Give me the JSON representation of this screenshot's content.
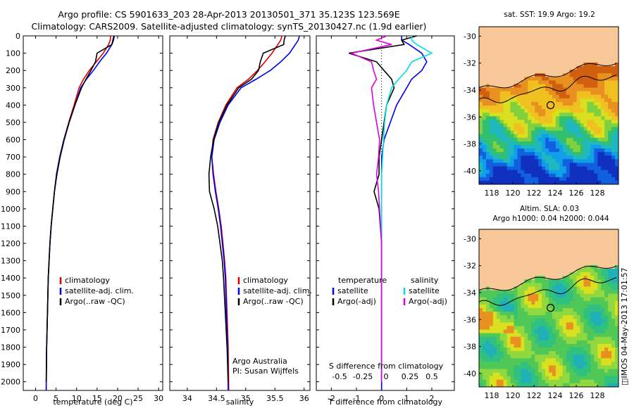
{
  "title_line1": "Argo profile: CS 5901633_203 28-Apr-2013 20130501_371 35.123S 123.569E",
  "title_line2": "Climatology: CARS2009. Satellite-adjusted climatology: synTS_20130427.nc (1.9d earlier)",
  "stamp": "IMOS 04-May-2013 17:01:57",
  "colors": {
    "clim": "#dd0000",
    "sat": "#0000ee",
    "argo": "#000000",
    "cyan": "#00dddd",
    "magenta": "#dd00dd",
    "land": "#f8c898"
  },
  "depth_ticks": [
    "0",
    "100",
    "200",
    "300",
    "400",
    "500",
    "600",
    "700",
    "800",
    "900",
    "1000",
    "1100",
    "1200",
    "1300",
    "1400",
    "1500",
    "1600",
    "1700",
    "1800",
    "1900",
    "2000"
  ],
  "temperature_panel": {
    "xlabel": "temperature (deg C)",
    "xticks": [
      "0",
      "5",
      "10",
      "15",
      "20",
      "25",
      "30"
    ],
    "legend": [
      "climatology",
      "satellite-adj. clim.",
      "Argo(..raw -QC)"
    ]
  },
  "salinity_panel": {
    "xlabel": "salinity",
    "xticks": [
      "34",
      "34.5",
      "35",
      "35.5",
      "36"
    ],
    "legend": [
      "climatology",
      "satellite-adj. clim.",
      "Argo(..raw -QC)"
    ],
    "note1": "Argo Australia",
    "note2": "PI: Susan Wijffels"
  },
  "difference_panel": {
    "xlabel": "T difference from climatology",
    "xticks": [
      "-2",
      "-1",
      "0",
      "1",
      "2"
    ],
    "top_label": "S difference from climatology",
    "top_ticks": [
      "-0.5",
      "-0.25",
      "0",
      "0.25",
      "0.5"
    ],
    "legend_temp_title": "temperature",
    "legend_sal_title": "salinity",
    "legend_temp": [
      "satellite",
      "Argo(-adj)"
    ],
    "legend_sal": [
      "satellite",
      "Argo(-adj)"
    ]
  },
  "map_top": {
    "title": "sat. SST: 19.9 Argo: 19.2",
    "yticks": [
      "-30",
      "-32",
      "-34",
      "-36",
      "-38",
      "-40"
    ],
    "xticks": [
      "118",
      "120",
      "122",
      "124",
      "126",
      "128"
    ]
  },
  "map_bottom": {
    "title1": "Altim. SLA: 0.03",
    "title2": "Argo h1000: 0.04 h2000: 0.044",
    "yticks": [
      "-30",
      "-32",
      "-34",
      "-36",
      "-38",
      "-40"
    ],
    "xticks": [
      "118",
      "120",
      "122",
      "124",
      "126",
      "128"
    ]
  },
  "chart_data": [
    {
      "type": "line",
      "title": "",
      "xlabel": "temperature (deg C)",
      "ylabel": "",
      "xlim": [
        -3,
        31
      ],
      "ylim": [
        2050,
        0
      ],
      "series": [
        {
          "name": "climatology",
          "color": "#dd0000",
          "x": [
            18.3,
            18.2,
            17.8,
            16.5,
            14.8,
            13.1,
            11.7,
            10.6,
            9.4,
            8.1,
            6.9,
            5.9,
            5.1,
            4.6,
            4.2,
            3.8,
            3.5,
            3.3,
            3.1,
            2.9,
            2.7,
            2.6
          ],
          "y": [
            0,
            25,
            50,
            100,
            150,
            200,
            250,
            300,
            400,
            500,
            600,
            700,
            800,
            900,
            1000,
            1100,
            1200,
            1300,
            1400,
            1600,
            1800,
            2050
          ]
        },
        {
          "name": "satellite-adj. clim.",
          "color": "#0000ee",
          "x": [
            19.2,
            19.0,
            18.6,
            17.3,
            15.6,
            14.1,
            12.4,
            11.0,
            9.6,
            8.2,
            6.9,
            5.9,
            5.1,
            4.6,
            4.2,
            3.8,
            3.5,
            3.3,
            3.1,
            2.9,
            2.7,
            2.6
          ],
          "y": [
            0,
            25,
            50,
            100,
            150,
            200,
            250,
            300,
            400,
            500,
            600,
            700,
            800,
            900,
            1000,
            1100,
            1200,
            1300,
            1400,
            1600,
            1800,
            2050
          ]
        },
        {
          "name": "Argo(..raw -QC)",
          "color": "#000000",
          "x": [
            19.1,
            18.9,
            18.6,
            15.0,
            14.6,
            13.5,
            12.3,
            11.2,
            9.6,
            8.2,
            7.0,
            6.0,
            5.2,
            4.6,
            4.2,
            3.8,
            3.5,
            3.3,
            3.1,
            2.9,
            2.7,
            2.6
          ],
          "y": [
            0,
            20,
            50,
            100,
            150,
            200,
            250,
            300,
            400,
            500,
            600,
            700,
            800,
            900,
            1000,
            1100,
            1200,
            1300,
            1400,
            1600,
            1800,
            2000
          ]
        }
      ]
    },
    {
      "type": "line",
      "title": "",
      "xlabel": "salinity",
      "ylabel": "",
      "xlim": [
        33.7,
        36.1
      ],
      "ylim": [
        2050,
        0
      ],
      "series": [
        {
          "name": "climatology",
          "color": "#dd0000",
          "x": [
            35.62,
            35.6,
            35.55,
            35.45,
            35.33,
            35.2,
            35.05,
            34.85,
            34.66,
            34.53,
            34.44,
            34.42,
            34.45,
            34.49,
            34.54,
            34.58,
            34.61,
            34.64,
            34.66,
            34.68,
            34.7,
            34.71
          ],
          "y": [
            0,
            25,
            50,
            100,
            150,
            200,
            250,
            300,
            400,
            500,
            600,
            700,
            800,
            900,
            1000,
            1100,
            1200,
            1300,
            1400,
            1600,
            1800,
            2050
          ]
        },
        {
          "name": "satellite-adj. clim.",
          "color": "#0000ee",
          "x": [
            35.92,
            35.9,
            35.85,
            35.75,
            35.6,
            35.42,
            35.18,
            34.92,
            34.7,
            34.56,
            34.46,
            34.42,
            34.44,
            34.48,
            34.53,
            34.57,
            34.6,
            34.63,
            34.65,
            34.67,
            34.69,
            34.7
          ],
          "y": [
            0,
            25,
            50,
            100,
            150,
            200,
            250,
            300,
            400,
            500,
            600,
            700,
            800,
            900,
            1000,
            1100,
            1200,
            1300,
            1400,
            1600,
            1800,
            2050
          ]
        },
        {
          "name": "Argo(..raw -QC)",
          "color": "#000000",
          "x": [
            35.68,
            35.66,
            35.65,
            35.3,
            35.25,
            35.22,
            35.1,
            34.88,
            34.68,
            34.54,
            34.45,
            34.4,
            34.37,
            34.38,
            34.46,
            34.52,
            34.56,
            34.6,
            34.62,
            34.65,
            34.68,
            34.7
          ],
          "y": [
            0,
            20,
            50,
            100,
            150,
            200,
            250,
            300,
            400,
            500,
            600,
            700,
            800,
            900,
            1000,
            1100,
            1200,
            1300,
            1400,
            1600,
            1800,
            2000
          ]
        }
      ]
    },
    {
      "type": "line",
      "title": "",
      "xlabel": "T difference from climatology",
      "ylabel": "",
      "xlim": [
        -2.6,
        2.9
      ],
      "ylim": [
        2050,
        0
      ],
      "series": [
        {
          "name": "temperature satellite",
          "color": "#0000ee",
          "x": [
            0.8,
            0.8,
            1.1,
            1.6,
            1.8,
            1.6,
            1.2,
            1.0,
            0.6,
            0.35,
            0.1,
            0.0,
            0.0,
            0.0,
            0.0,
            0.0,
            0.0,
            0.0,
            0.0,
            0.0,
            0.0
          ],
          "y": [
            0,
            25,
            50,
            100,
            150,
            200,
            250,
            300,
            400,
            500,
            600,
            700,
            800,
            900,
            1000,
            1100,
            1200,
            1400,
            1600,
            1800,
            2050
          ]
        },
        {
          "name": "temperature Argo(-adj)",
          "color": "#000000",
          "x": [
            1.4,
            0.8,
            0.9,
            -1.3,
            -0.2,
            0.1,
            0.4,
            0.5,
            0.2,
            0.1,
            0.0,
            -0.1,
            -0.1,
            -0.3,
            -0.1,
            -0.05,
            0.0,
            0.0,
            0.0,
            0.0,
            0.0
          ],
          "y": [
            0,
            25,
            50,
            100,
            150,
            200,
            250,
            300,
            400,
            500,
            600,
            700,
            800,
            900,
            1000,
            1100,
            1200,
            1400,
            1600,
            1800,
            2000
          ]
        },
        {
          "name": "salinity satellite",
          "color": "#00dddd",
          "x": [
            0.3,
            0.3,
            0.35,
            0.5,
            0.3,
            0.25,
            0.17,
            0.1,
            0.05,
            0.03,
            0.02,
            0.01,
            0.0,
            0.0,
            0.0,
            0.0,
            0.0,
            0.0
          ],
          "y": [
            0,
            25,
            50,
            100,
            150,
            200,
            250,
            300,
            400,
            500,
            600,
            700,
            800,
            900,
            1000,
            1200,
            1600,
            2000
          ]
        },
        {
          "name": "salinity Argo(-adj)",
          "color": "#dd00dd",
          "x": [
            0.05,
            -0.05,
            0.1,
            -0.3,
            -0.1,
            -0.08,
            -0.05,
            -0.1,
            -0.08,
            -0.05,
            -0.02,
            -0.03,
            -0.05,
            -0.03,
            -0.02,
            0.0,
            0.0,
            0.0
          ],
          "y": [
            0,
            25,
            50,
            100,
            150,
            200,
            250,
            300,
            400,
            500,
            600,
            700,
            800,
            900,
            1000,
            1200,
            1600,
            2000
          ]
        }
      ]
    }
  ]
}
